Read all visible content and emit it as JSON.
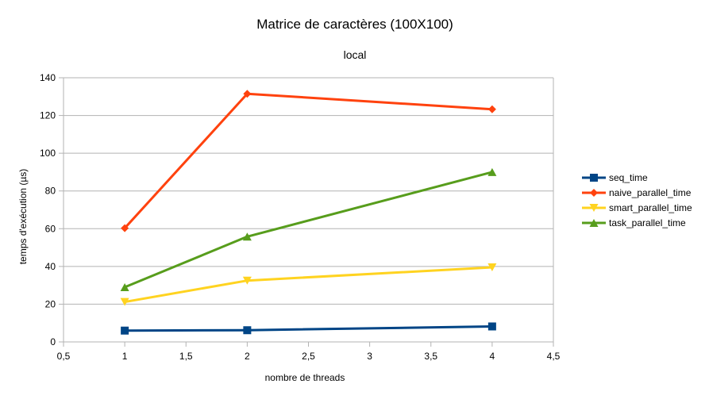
{
  "chart_data": {
    "type": "line",
    "title": "Matrice de caractères (100X100)",
    "subtitle": "local",
    "xlabel": "nombre  de threads",
    "ylabel": "temps d'exécution (µs)",
    "xlim": [
      0.5,
      4.5
    ],
    "ylim": [
      0,
      140
    ],
    "x_ticks": [
      0.5,
      1,
      1.5,
      2,
      2.5,
      3,
      3.5,
      4,
      4.5
    ],
    "x_tick_labels": [
      "0,5",
      "1",
      "1,5",
      "2",
      "2,5",
      "3",
      "3,5",
      "4",
      "4,5"
    ],
    "y_ticks": [
      0,
      20,
      40,
      60,
      80,
      100,
      120,
      140
    ],
    "y_tick_labels": [
      "0",
      "20",
      "40",
      "60",
      "80",
      "100",
      "120",
      "140"
    ],
    "grid": "horizontal",
    "legend_position": "right",
    "x": [
      1,
      2,
      4
    ],
    "series": [
      {
        "name": "seq_time",
        "values": [
          6,
          6.2,
          8.2
        ],
        "color": "#004586",
        "marker": "square"
      },
      {
        "name": "naive_parallel_time",
        "values": [
          60.3,
          131.5,
          123.3
        ],
        "color": "#ff420e",
        "marker": "diamond"
      },
      {
        "name": "smart_parallel_time",
        "values": [
          21.2,
          32.5,
          39.5
        ],
        "color": "#ffd320",
        "marker": "triangle-down"
      },
      {
        "name": "task_parallel_time",
        "values": [
          29,
          55.8,
          90
        ],
        "color": "#579d1c",
        "marker": "triangle-up"
      }
    ]
  }
}
